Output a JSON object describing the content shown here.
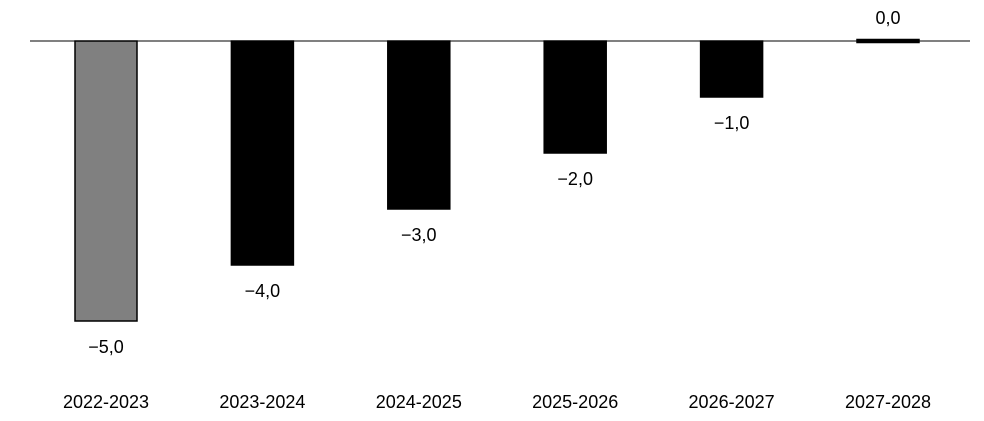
{
  "chart_data": {
    "type": "bar",
    "categories": [
      "2022-2023",
      "2023-2024",
      "2024-2025",
      "2025-2026",
      "2026-2027",
      "2027-2028"
    ],
    "values": [
      -5.0,
      -4.0,
      -3.0,
      -2.0,
      -1.0,
      0.0
    ],
    "value_labels": [
      "−5,0",
      "−4,0",
      "−3,0",
      "−2,0",
      "−1,0",
      "0,0"
    ],
    "bar_colors": [
      "#808080",
      "#000000",
      "#000000",
      "#000000",
      "#000000",
      "#000000"
    ],
    "title": "",
    "xlabel": "",
    "ylabel": "",
    "ylim": [
      -5,
      0
    ],
    "grid": false,
    "legend": "none"
  }
}
